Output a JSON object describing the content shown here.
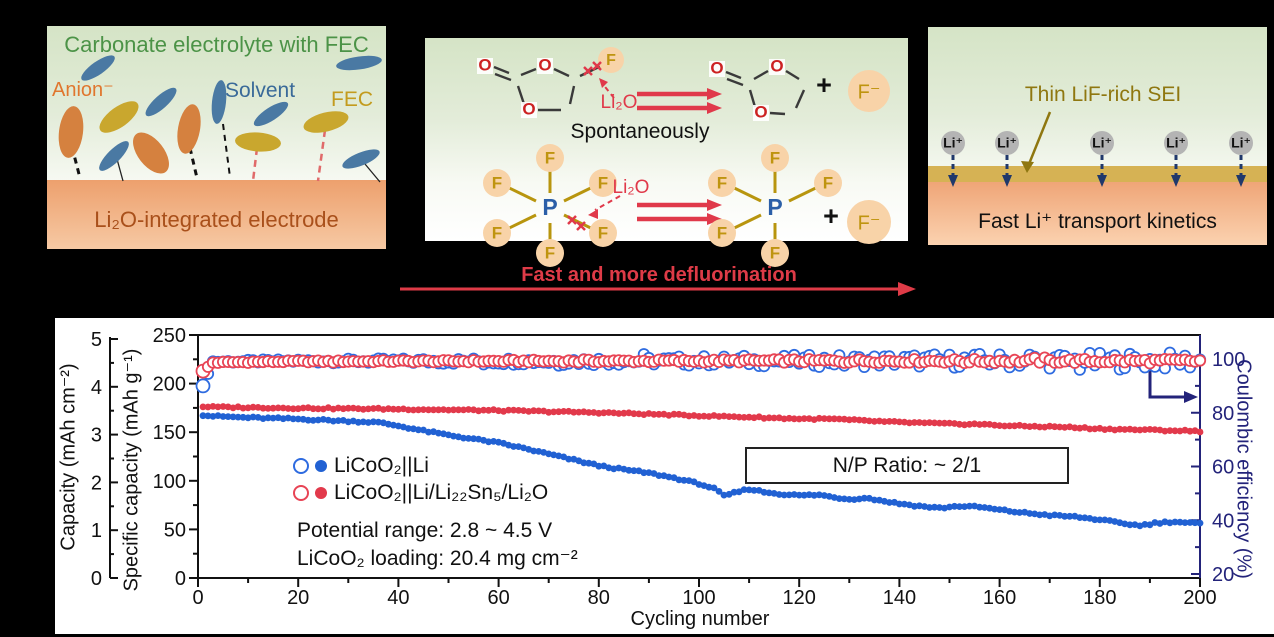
{
  "figure": {
    "panel_electrolyte": {
      "title": "Carbonate electrolyte with FEC",
      "anion_label": "Anion⁻",
      "solvent_label": "Solvent",
      "fec_label": "FEC",
      "electrode_label": "Li₂O-integrated electrode"
    },
    "panel_reactions": {
      "o": "O",
      "f": "F",
      "p": "P",
      "plus": "+",
      "fluoride": "F⁻",
      "li2o": "Li₂O",
      "spontaneously": "Spontaneously",
      "arrow_caption": "Fast and more defluorination"
    },
    "panel_sei": {
      "sei_label": "Thin LiF-rich SEI",
      "li_ion": "Li⁺",
      "caption": "Fast Li⁺ transport kinetics"
    }
  },
  "chart_data": {
    "type": "scatter",
    "xlabel": "Cycling number",
    "x_range": [
      0,
      200
    ],
    "x_ticks": [
      0,
      20,
      40,
      60,
      80,
      100,
      120,
      140,
      160,
      180,
      200
    ],
    "left_axis": {
      "label": "Specific capacity (mAh g⁻¹)",
      "range": [
        0,
        250
      ],
      "ticks": [
        0,
        50,
        100,
        150,
        200,
        250
      ]
    },
    "outer_left_axis": {
      "label": "Capacity (mAh cm⁻²)",
      "range": [
        0,
        5
      ],
      "ticks": [
        0,
        1,
        2,
        3,
        4,
        5
      ]
    },
    "right_axis": {
      "label": "Coulombic efficiency (%)",
      "range": [
        18.5,
        111
      ],
      "ticks": [
        20,
        40,
        60,
        80,
        100
      ]
    },
    "legend": [
      {
        "label": "LiCoO₂||Li",
        "color": "#2e6be0",
        "fill_color": "#2161d3"
      },
      {
        "label": "LiCoO₂||Li/Li₂₂Sn₅/Li₂O",
        "color": "#e84455",
        "fill_color": "#e2394b"
      }
    ],
    "annotations": [
      "Potential range: 2.8 ~ 4.5 V",
      "LiCoO₂ loading: 20.4 mg cm⁻²"
    ],
    "np_ratio_label": "N/P Ratio: ~ 2/1",
    "series": [
      {
        "name": "LiCoO2||Li coulombic efficiency",
        "axis": "right",
        "marker": "open",
        "color": "#2e6be0",
        "points": [
          [
            1,
            90
          ],
          [
            3,
            99.0
          ],
          [
            20,
            99.3
          ],
          [
            50,
            99.2
          ],
          [
            100,
            99.3
          ],
          [
            150,
            99.4
          ],
          [
            200,
            99.2
          ]
        ],
        "scatter": [
          0.4,
          3.4
        ]
      },
      {
        "name": "LiCoO2||Li/Li22Sn5/Li2O coulombic efficiency",
        "axis": "right",
        "marker": "open",
        "color": "#e84455",
        "points": [
          [
            1,
            95.5
          ],
          [
            3,
            98.7
          ],
          [
            20,
            99.1
          ],
          [
            60,
            99.2
          ],
          [
            120,
            99.3
          ],
          [
            200,
            99.2
          ]
        ],
        "scatter": [
          0.25,
          0.9
        ]
      },
      {
        "name": "LiCoO2||Li specific capacity",
        "axis": "left",
        "marker": "filled",
        "color": "#2161d3",
        "points": [
          [
            1,
            167
          ],
          [
            10,
            165
          ],
          [
            20,
            163.5
          ],
          [
            30,
            161.5
          ],
          [
            36,
            160
          ],
          [
            40,
            156.5
          ],
          [
            45,
            151.5
          ],
          [
            50,
            147
          ],
          [
            55,
            143
          ],
          [
            60,
            139
          ],
          [
            65,
            133.5
          ],
          [
            70,
            127.5
          ],
          [
            75,
            121.5
          ],
          [
            80,
            115.5
          ],
          [
            85,
            111.5
          ],
          [
            90,
            108
          ],
          [
            95,
            103
          ],
          [
            100,
            97
          ],
          [
            103,
            92
          ],
          [
            105,
            84.5
          ],
          [
            108,
            89
          ],
          [
            110,
            91.5
          ],
          [
            113,
            88.5
          ],
          [
            116,
            86.5
          ],
          [
            120,
            85
          ],
          [
            124,
            85.5
          ],
          [
            127,
            83
          ],
          [
            130,
            81
          ],
          [
            133,
            82.5
          ],
          [
            136,
            80
          ],
          [
            140,
            76.5
          ],
          [
            144,
            74
          ],
          [
            148,
            72
          ],
          [
            152,
            74
          ],
          [
            156,
            73
          ],
          [
            160,
            70
          ],
          [
            165,
            67
          ],
          [
            170,
            64.5
          ],
          [
            175,
            63
          ],
          [
            180,
            60
          ],
          [
            184,
            56.5
          ],
          [
            188,
            54
          ],
          [
            191,
            56.5
          ],
          [
            195,
            58
          ],
          [
            198,
            56.5
          ],
          [
            200,
            56
          ]
        ],
        "scatter": [
          0.9,
          0.9
        ]
      },
      {
        "name": "LiCoO2||Li/Li22Sn5/Li2O specific capacity",
        "axis": "left",
        "marker": "filled",
        "color": "#e2394b",
        "points": [
          [
            1,
            176
          ],
          [
            20,
            174.8
          ],
          [
            40,
            173.8
          ],
          [
            60,
            172.3
          ],
          [
            80,
            170.2
          ],
          [
            100,
            167
          ],
          [
            110,
            165.5
          ],
          [
            120,
            163.8
          ],
          [
            127,
            163.5
          ],
          [
            132,
            162
          ],
          [
            140,
            160.2
          ],
          [
            150,
            158.6
          ],
          [
            156,
            158.2
          ],
          [
            160,
            157
          ],
          [
            166,
            156
          ],
          [
            172,
            155.5
          ],
          [
            176,
            154.4
          ],
          [
            180,
            153.6
          ],
          [
            183,
            153
          ],
          [
            187,
            152.6
          ],
          [
            192,
            152
          ],
          [
            200,
            151
          ]
        ],
        "scatter": [
          0.8,
          0.8
        ]
      }
    ]
  }
}
